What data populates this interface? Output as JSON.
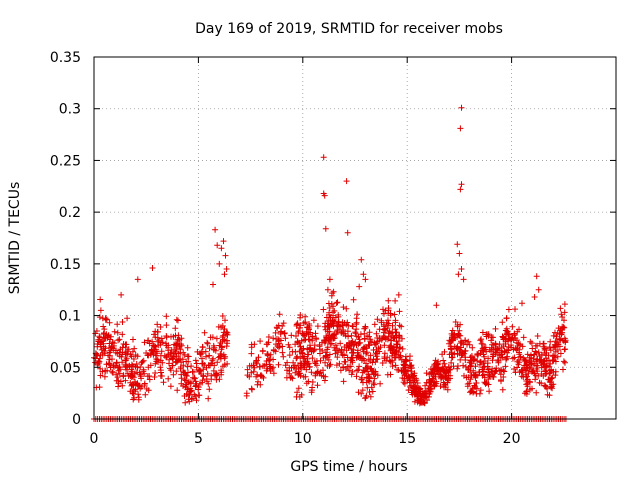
{
  "chart_data": {
    "type": "scatter",
    "title": "Day 169 of 2019, SRMTID for receiver mobs",
    "xlabel": "GPS time / hours",
    "ylabel": "SRMTID / TECUs",
    "xlim": [
      0,
      25
    ],
    "ylim": [
      0,
      0.35
    ],
    "xticks": [
      0,
      5,
      10,
      15,
      20
    ],
    "xtick_labels": [
      "0",
      "5",
      "10",
      "15",
      "20"
    ],
    "yticks": [
      0,
      0.05,
      0.1,
      0.15,
      0.2,
      0.25,
      0.3,
      0.35
    ],
    "ytick_labels": [
      "0",
      "0.05",
      "0.1",
      "0.15",
      "0.2",
      "0.25",
      "0.3",
      "0.35"
    ],
    "grid": true,
    "marker": "+",
    "color": "#e00000",
    "series": [
      {
        "name": "SRMTID",
        "segments": [
          {
            "x_start": 0.0,
            "x_end": 6.4,
            "count": 520,
            "base": 0.055,
            "spread": 0.028,
            "min": 0.015,
            "max": 0.12
          },
          {
            "x_start": 7.3,
            "x_end": 9.6,
            "count": 110,
            "base": 0.055,
            "spread": 0.022,
            "min": 0.02,
            "max": 0.11
          },
          {
            "x_start": 9.6,
            "x_end": 14.8,
            "count": 560,
            "base": 0.07,
            "spread": 0.03,
            "min": 0.02,
            "max": 0.14
          },
          {
            "x_start": 14.8,
            "x_end": 17.0,
            "count": 240,
            "base": 0.038,
            "spread": 0.014,
            "min": 0.015,
            "max": 0.08
          },
          {
            "x_start": 17.0,
            "x_end": 22.6,
            "count": 520,
            "base": 0.06,
            "spread": 0.025,
            "min": 0.02,
            "max": 0.12
          }
        ],
        "highlights": [
          {
            "x": 2.8,
            "y": 0.146
          },
          {
            "x": 2.1,
            "y": 0.135
          },
          {
            "x": 1.3,
            "y": 0.12
          },
          {
            "x": 5.8,
            "y": 0.183
          },
          {
            "x": 5.9,
            "y": 0.168
          },
          {
            "x": 6.1,
            "y": 0.165
          },
          {
            "x": 6.2,
            "y": 0.172
          },
          {
            "x": 6.3,
            "y": 0.158
          },
          {
            "x": 6.35,
            "y": 0.145
          },
          {
            "x": 6.0,
            "y": 0.15
          },
          {
            "x": 6.25,
            "y": 0.14
          },
          {
            "x": 5.7,
            "y": 0.13
          },
          {
            "x": 11.0,
            "y": 0.253
          },
          {
            "x": 11.0,
            "y": 0.218
          },
          {
            "x": 11.05,
            "y": 0.216
          },
          {
            "x": 11.1,
            "y": 0.184
          },
          {
            "x": 11.3,
            "y": 0.135
          },
          {
            "x": 11.2,
            "y": 0.125
          },
          {
            "x": 12.1,
            "y": 0.23
          },
          {
            "x": 12.15,
            "y": 0.18
          },
          {
            "x": 12.8,
            "y": 0.154
          },
          {
            "x": 12.9,
            "y": 0.14
          },
          {
            "x": 13.0,
            "y": 0.135
          },
          {
            "x": 12.7,
            "y": 0.128
          },
          {
            "x": 14.6,
            "y": 0.12
          },
          {
            "x": 16.4,
            "y": 0.11
          },
          {
            "x": 17.6,
            "y": 0.301
          },
          {
            "x": 17.55,
            "y": 0.281
          },
          {
            "x": 17.6,
            "y": 0.227
          },
          {
            "x": 17.55,
            "y": 0.222
          },
          {
            "x": 17.4,
            "y": 0.169
          },
          {
            "x": 17.5,
            "y": 0.16
          },
          {
            "x": 17.6,
            "y": 0.145
          },
          {
            "x": 17.45,
            "y": 0.14
          },
          {
            "x": 17.7,
            "y": 0.135
          },
          {
            "x": 21.2,
            "y": 0.138
          },
          {
            "x": 21.3,
            "y": 0.125
          },
          {
            "x": 21.1,
            "y": 0.118
          },
          {
            "x": 20.5,
            "y": 0.112
          }
        ],
        "zero_row": {
          "value": 0,
          "x_start": 0.0,
          "x_end": 22.6,
          "count": 260
        }
      }
    ]
  }
}
